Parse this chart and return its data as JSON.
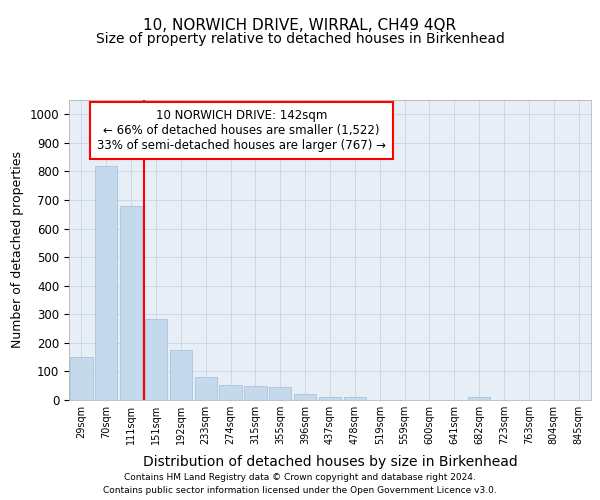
{
  "title": "10, NORWICH DRIVE, WIRRAL, CH49 4QR",
  "subtitle": "Size of property relative to detached houses in Birkenhead",
  "xlabel": "Distribution of detached houses by size in Birkenhead",
  "ylabel": "Number of detached properties",
  "footer_line1": "Contains HM Land Registry data © Crown copyright and database right 2024.",
  "footer_line2": "Contains public sector information licensed under the Open Government Licence v3.0.",
  "categories": [
    "29sqm",
    "70sqm",
    "111sqm",
    "151sqm",
    "192sqm",
    "233sqm",
    "274sqm",
    "315sqm",
    "355sqm",
    "396sqm",
    "437sqm",
    "478sqm",
    "519sqm",
    "559sqm",
    "600sqm",
    "641sqm",
    "682sqm",
    "723sqm",
    "763sqm",
    "804sqm",
    "845sqm"
  ],
  "values": [
    150,
    820,
    680,
    285,
    175,
    80,
    52,
    50,
    45,
    22,
    10,
    10,
    0,
    0,
    0,
    0,
    10,
    0,
    0,
    0,
    0
  ],
  "bar_color": "#c5d9ed",
  "bar_edge_color": "#a0bdd8",
  "red_line_index": 2.5,
  "annotation_text": "10 NORWICH DRIVE: 142sqm\n← 66% of detached houses are smaller (1,522)\n33% of semi-detached houses are larger (767) →",
  "annotation_box_color": "white",
  "annotation_box_edge_color": "red",
  "red_line_color": "red",
  "ylim": [
    0,
    1050
  ],
  "yticks": [
    0,
    100,
    200,
    300,
    400,
    500,
    600,
    700,
    800,
    900,
    1000
  ],
  "grid_color": "#ccd8e8",
  "background_color": "#e8eef5",
  "title_fontsize": 11,
  "subtitle_fontsize": 10,
  "xlabel_fontsize": 10,
  "ylabel_fontsize": 9
}
